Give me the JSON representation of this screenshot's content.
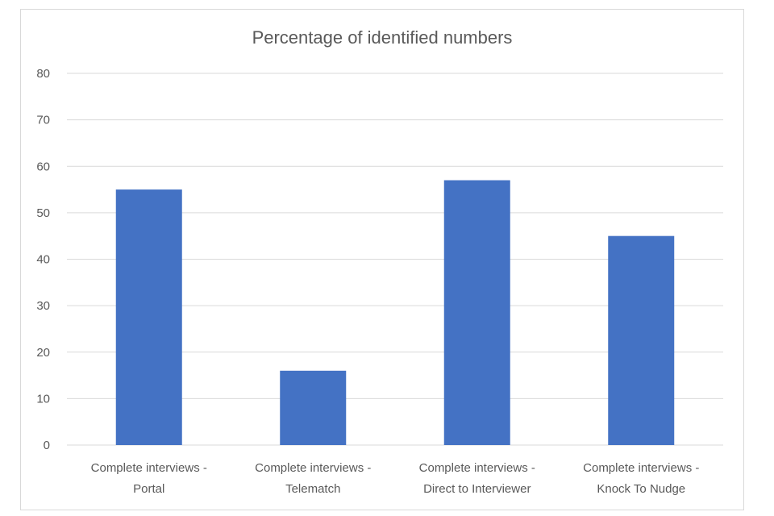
{
  "chart_data": {
    "type": "bar",
    "title": "Percentage of identified numbers",
    "categories": [
      [
        "Complete interviews -",
        "Portal"
      ],
      [
        "Complete interviews -",
        "Telematch"
      ],
      [
        "Complete interviews -",
        "Direct to Interviewer"
      ],
      [
        "Complete interviews -",
        "Knock To Nudge"
      ]
    ],
    "series": [
      {
        "values": [
          55,
          16,
          57,
          45
        ]
      }
    ],
    "ylim": [
      0,
      80
    ],
    "yticks": [
      0,
      10,
      20,
      30,
      40,
      50,
      60,
      70,
      80
    ],
    "grid": true,
    "legend": "none",
    "bar_color": "#4472c4",
    "grid_color": "#d9d9d9",
    "text_color": "#595959"
  }
}
